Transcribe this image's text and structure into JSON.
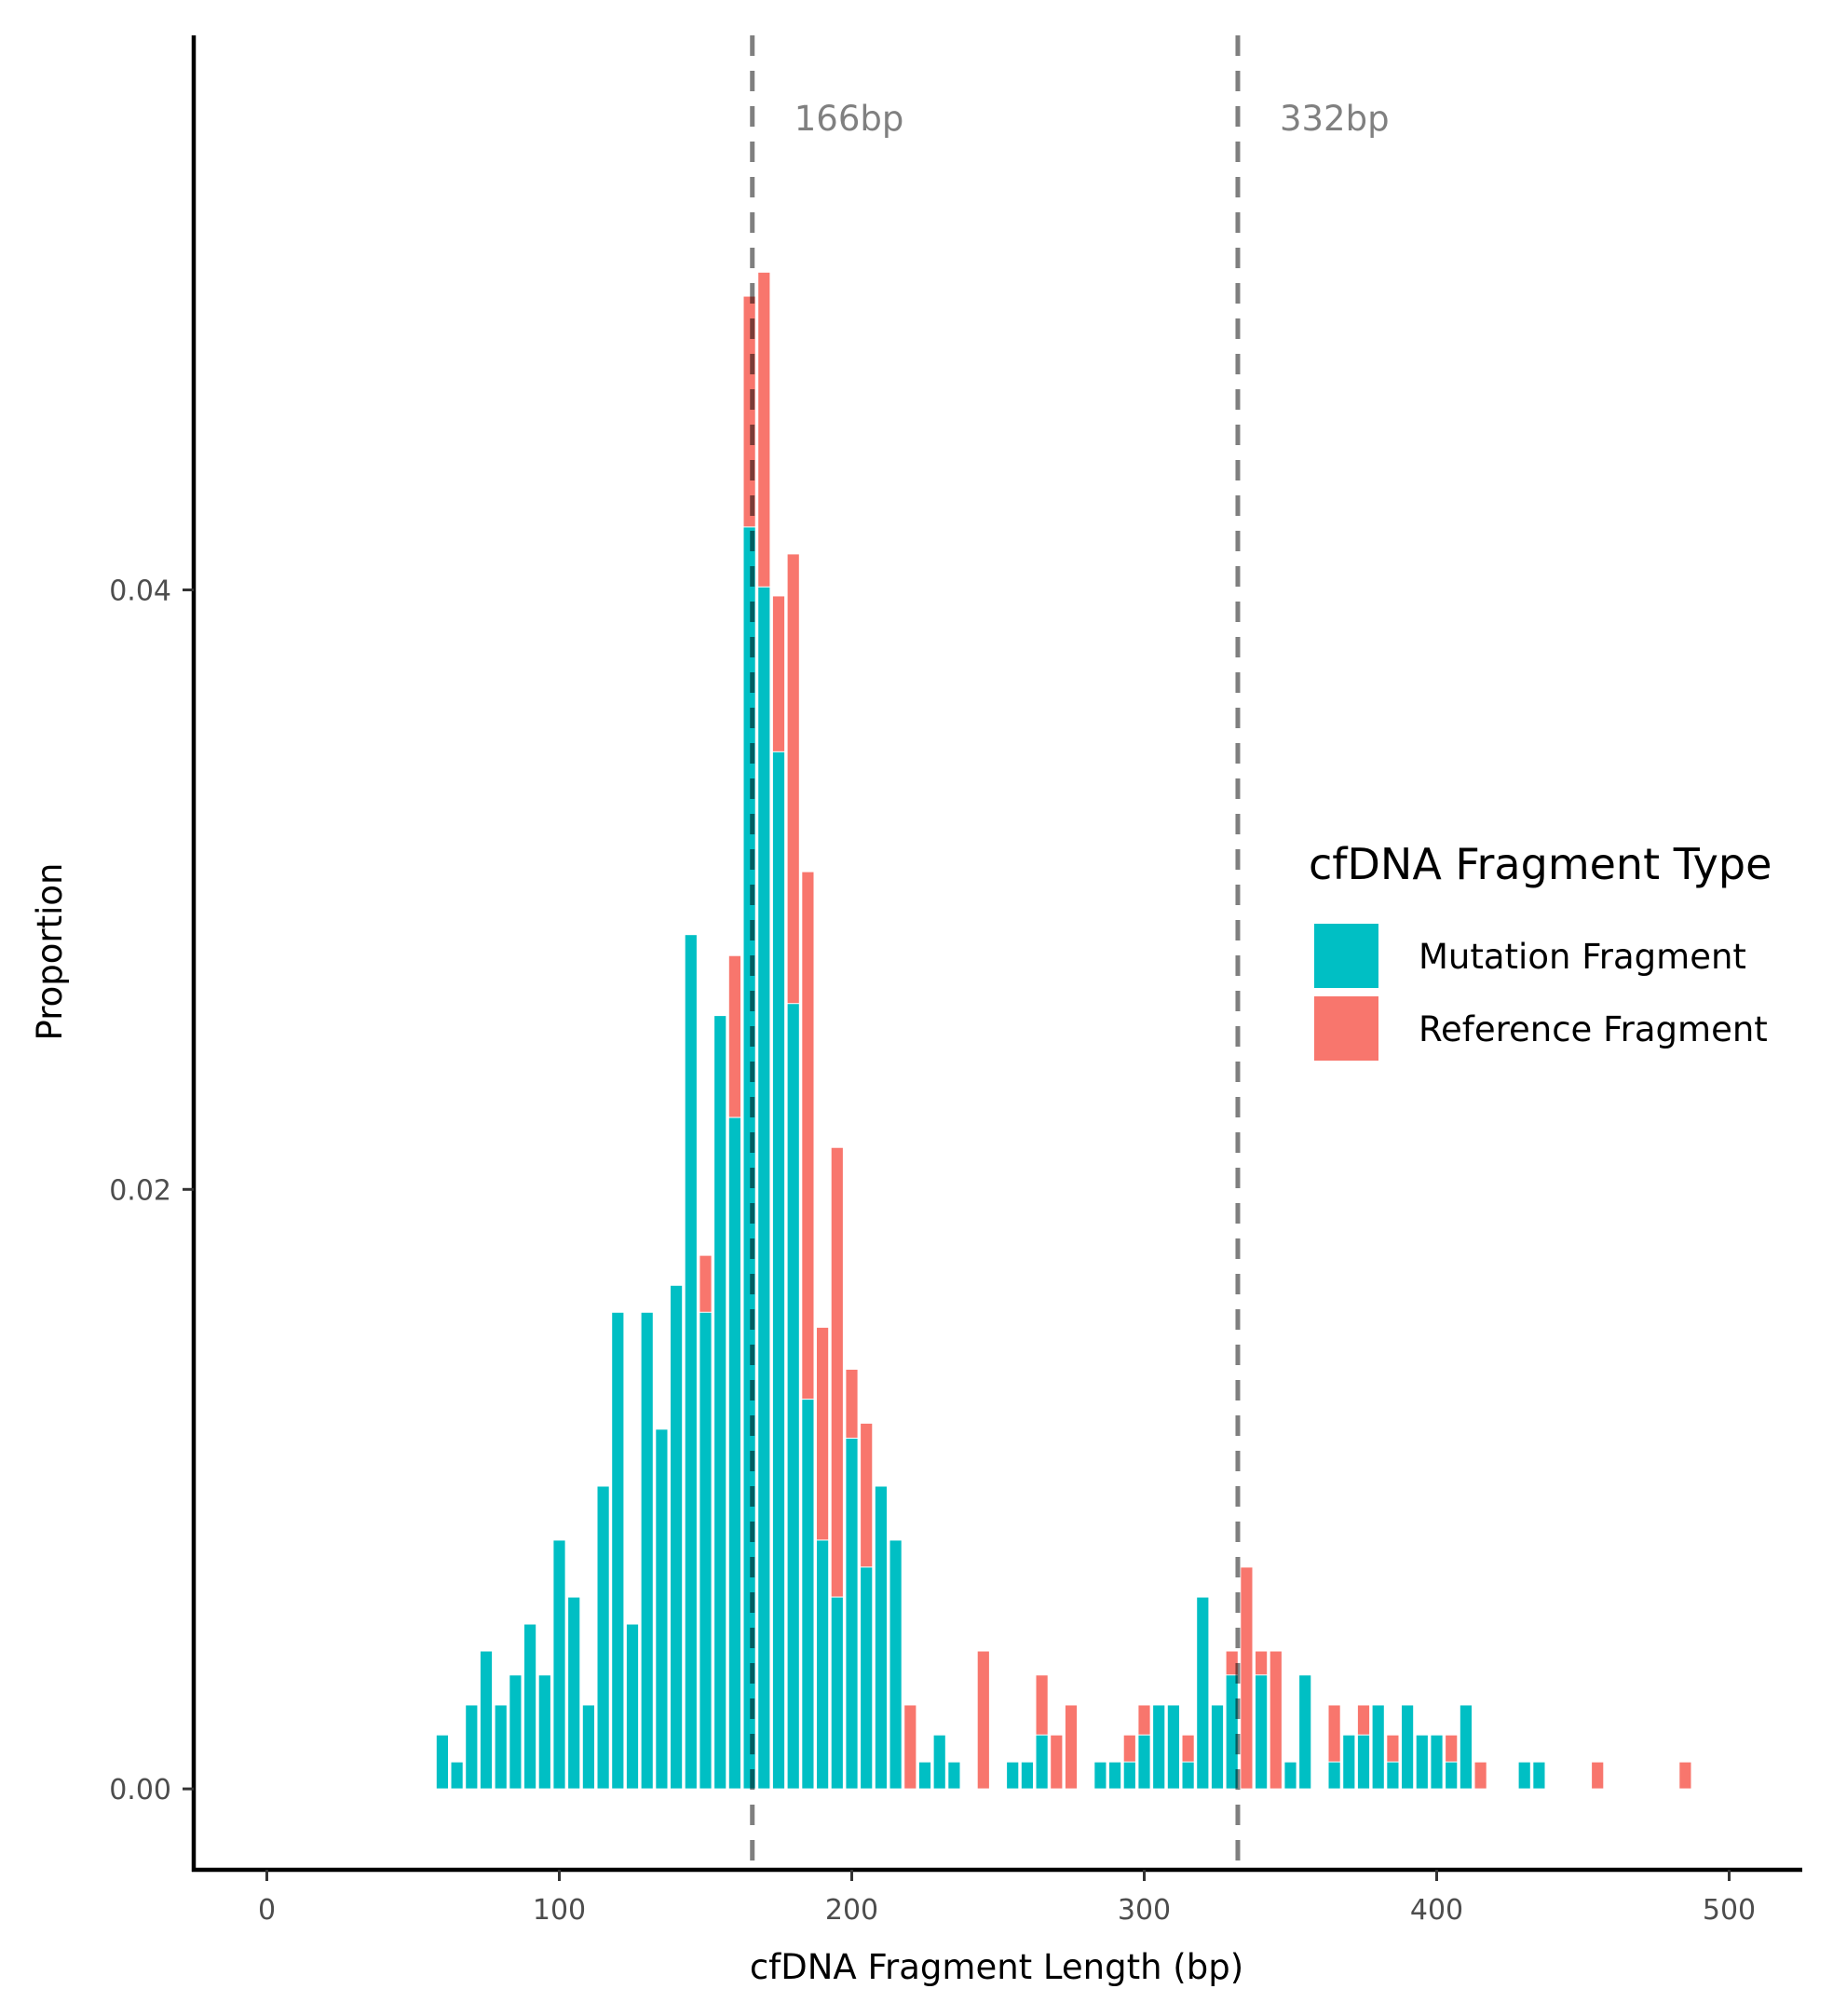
{
  "chart_data": {
    "type": "bar",
    "xlabel": "cfDNA Fragment Length (bp)",
    "ylabel": "Proportion",
    "xlim": [
      -25,
      525
    ],
    "ylim": [
      -0.0027,
      0.0585
    ],
    "x_ticks": [
      0,
      100,
      200,
      300,
      400,
      500
    ],
    "y_ticks": [
      0.0,
      0.02,
      0.04
    ],
    "x_tick_labels": [
      "0",
      "100",
      "200",
      "300",
      "400",
      "500"
    ],
    "y_tick_labels": [
      "0.00",
      "0.02",
      "0.04"
    ],
    "grid": false,
    "bar_width_bp": 4.2,
    "reference_lines": [
      {
        "x": 166,
        "label": "166bp"
      },
      {
        "x": 332,
        "label": "332bp"
      }
    ],
    "legend": {
      "title": "cfDNA Fragment Type",
      "position": "right",
      "entries": [
        {
          "label": "Mutation Fragment",
          "color": "#00BFC4"
        },
        {
          "label": "Reference Fragment",
          "color": "#F8766D"
        }
      ]
    },
    "series": [
      {
        "name": "Reference Fragment",
        "color": "#F8766D",
        "points": [
          [
            70,
            0.0018
          ],
          [
            75,
            0.0009
          ],
          [
            85,
            0.0009
          ],
          [
            100,
            0.0018
          ],
          [
            110,
            0.0009
          ],
          [
            115,
            0.0018
          ],
          [
            120,
            0.0038
          ],
          [
            125,
            0.0018
          ],
          [
            130,
            0.0028
          ],
          [
            135,
            0.0074
          ],
          [
            140,
            0.0094
          ],
          [
            145,
            0.014
          ],
          [
            150,
            0.0178
          ],
          [
            155,
            0.0205
          ],
          [
            160,
            0.0278
          ],
          [
            165,
            0.0498
          ],
          [
            170,
            0.0506
          ],
          [
            175,
            0.0398
          ],
          [
            180,
            0.0412
          ],
          [
            185,
            0.0306
          ],
          [
            190,
            0.0154
          ],
          [
            195,
            0.0214
          ],
          [
            200,
            0.014
          ],
          [
            205,
            0.0122
          ],
          [
            210,
            0.0064
          ],
          [
            215,
            0.0038
          ],
          [
            220,
            0.0028
          ],
          [
            245,
            0.0046
          ],
          [
            265,
            0.0038
          ],
          [
            270,
            0.0018
          ],
          [
            275,
            0.0028
          ],
          [
            295,
            0.0018
          ],
          [
            300,
            0.0028
          ],
          [
            315,
            0.0018
          ],
          [
            320,
            0.0055
          ],
          [
            325,
            0.0018
          ],
          [
            330,
            0.0046
          ],
          [
            335,
            0.0074
          ],
          [
            340,
            0.0046
          ],
          [
            345,
            0.0046
          ],
          [
            355,
            0.0028
          ],
          [
            365,
            0.0028
          ],
          [
            375,
            0.0028
          ],
          [
            385,
            0.0018
          ],
          [
            390,
            0.0028
          ],
          [
            400,
            0.0018
          ],
          [
            405,
            0.0018
          ],
          [
            415,
            0.0009
          ],
          [
            435,
            0.0009
          ],
          [
            455,
            0.0009
          ],
          [
            485,
            0.0009
          ]
        ]
      },
      {
        "name": "Mutation Fragment",
        "color": "#00BFC4",
        "points": [
          [
            60,
            0.0018
          ],
          [
            65,
            0.0009
          ],
          [
            70,
            0.0028
          ],
          [
            75,
            0.0046
          ],
          [
            80,
            0.0028
          ],
          [
            85,
            0.0038
          ],
          [
            90,
            0.0055
          ],
          [
            95,
            0.0038
          ],
          [
            100,
            0.0083
          ],
          [
            105,
            0.0064
          ],
          [
            110,
            0.0028
          ],
          [
            115,
            0.0101
          ],
          [
            120,
            0.0159
          ],
          [
            125,
            0.0055
          ],
          [
            130,
            0.0159
          ],
          [
            135,
            0.012
          ],
          [
            140,
            0.0168
          ],
          [
            145,
            0.0285
          ],
          [
            150,
            0.0159
          ],
          [
            155,
            0.0258
          ],
          [
            160,
            0.0224
          ],
          [
            165,
            0.0421
          ],
          [
            170,
            0.0401
          ],
          [
            175,
            0.0346
          ],
          [
            180,
            0.0262
          ],
          [
            185,
            0.013
          ],
          [
            190,
            0.0083
          ],
          [
            195,
            0.0064
          ],
          [
            200,
            0.0117
          ],
          [
            205,
            0.0074
          ],
          [
            210,
            0.0101
          ],
          [
            215,
            0.0083
          ],
          [
            225,
            0.0009
          ],
          [
            230,
            0.0018
          ],
          [
            235,
            0.0009
          ],
          [
            255,
            0.0009
          ],
          [
            260,
            0.0009
          ],
          [
            265,
            0.0018
          ],
          [
            285,
            0.0009
          ],
          [
            290,
            0.0009
          ],
          [
            295,
            0.0009
          ],
          [
            300,
            0.0018
          ],
          [
            305,
            0.0028
          ],
          [
            310,
            0.0028
          ],
          [
            315,
            0.0009
          ],
          [
            320,
            0.0064
          ],
          [
            325,
            0.0028
          ],
          [
            330,
            0.0038
          ],
          [
            340,
            0.0038
          ],
          [
            350,
            0.0009
          ],
          [
            355,
            0.0038
          ],
          [
            365,
            0.0009
          ],
          [
            370,
            0.0018
          ],
          [
            375,
            0.0018
          ],
          [
            380,
            0.0028
          ],
          [
            385,
            0.0009
          ],
          [
            390,
            0.0028
          ],
          [
            395,
            0.0018
          ],
          [
            400,
            0.0018
          ],
          [
            405,
            0.0009
          ],
          [
            410,
            0.0028
          ],
          [
            430,
            0.0009
          ],
          [
            435,
            0.0009
          ]
        ]
      }
    ]
  }
}
